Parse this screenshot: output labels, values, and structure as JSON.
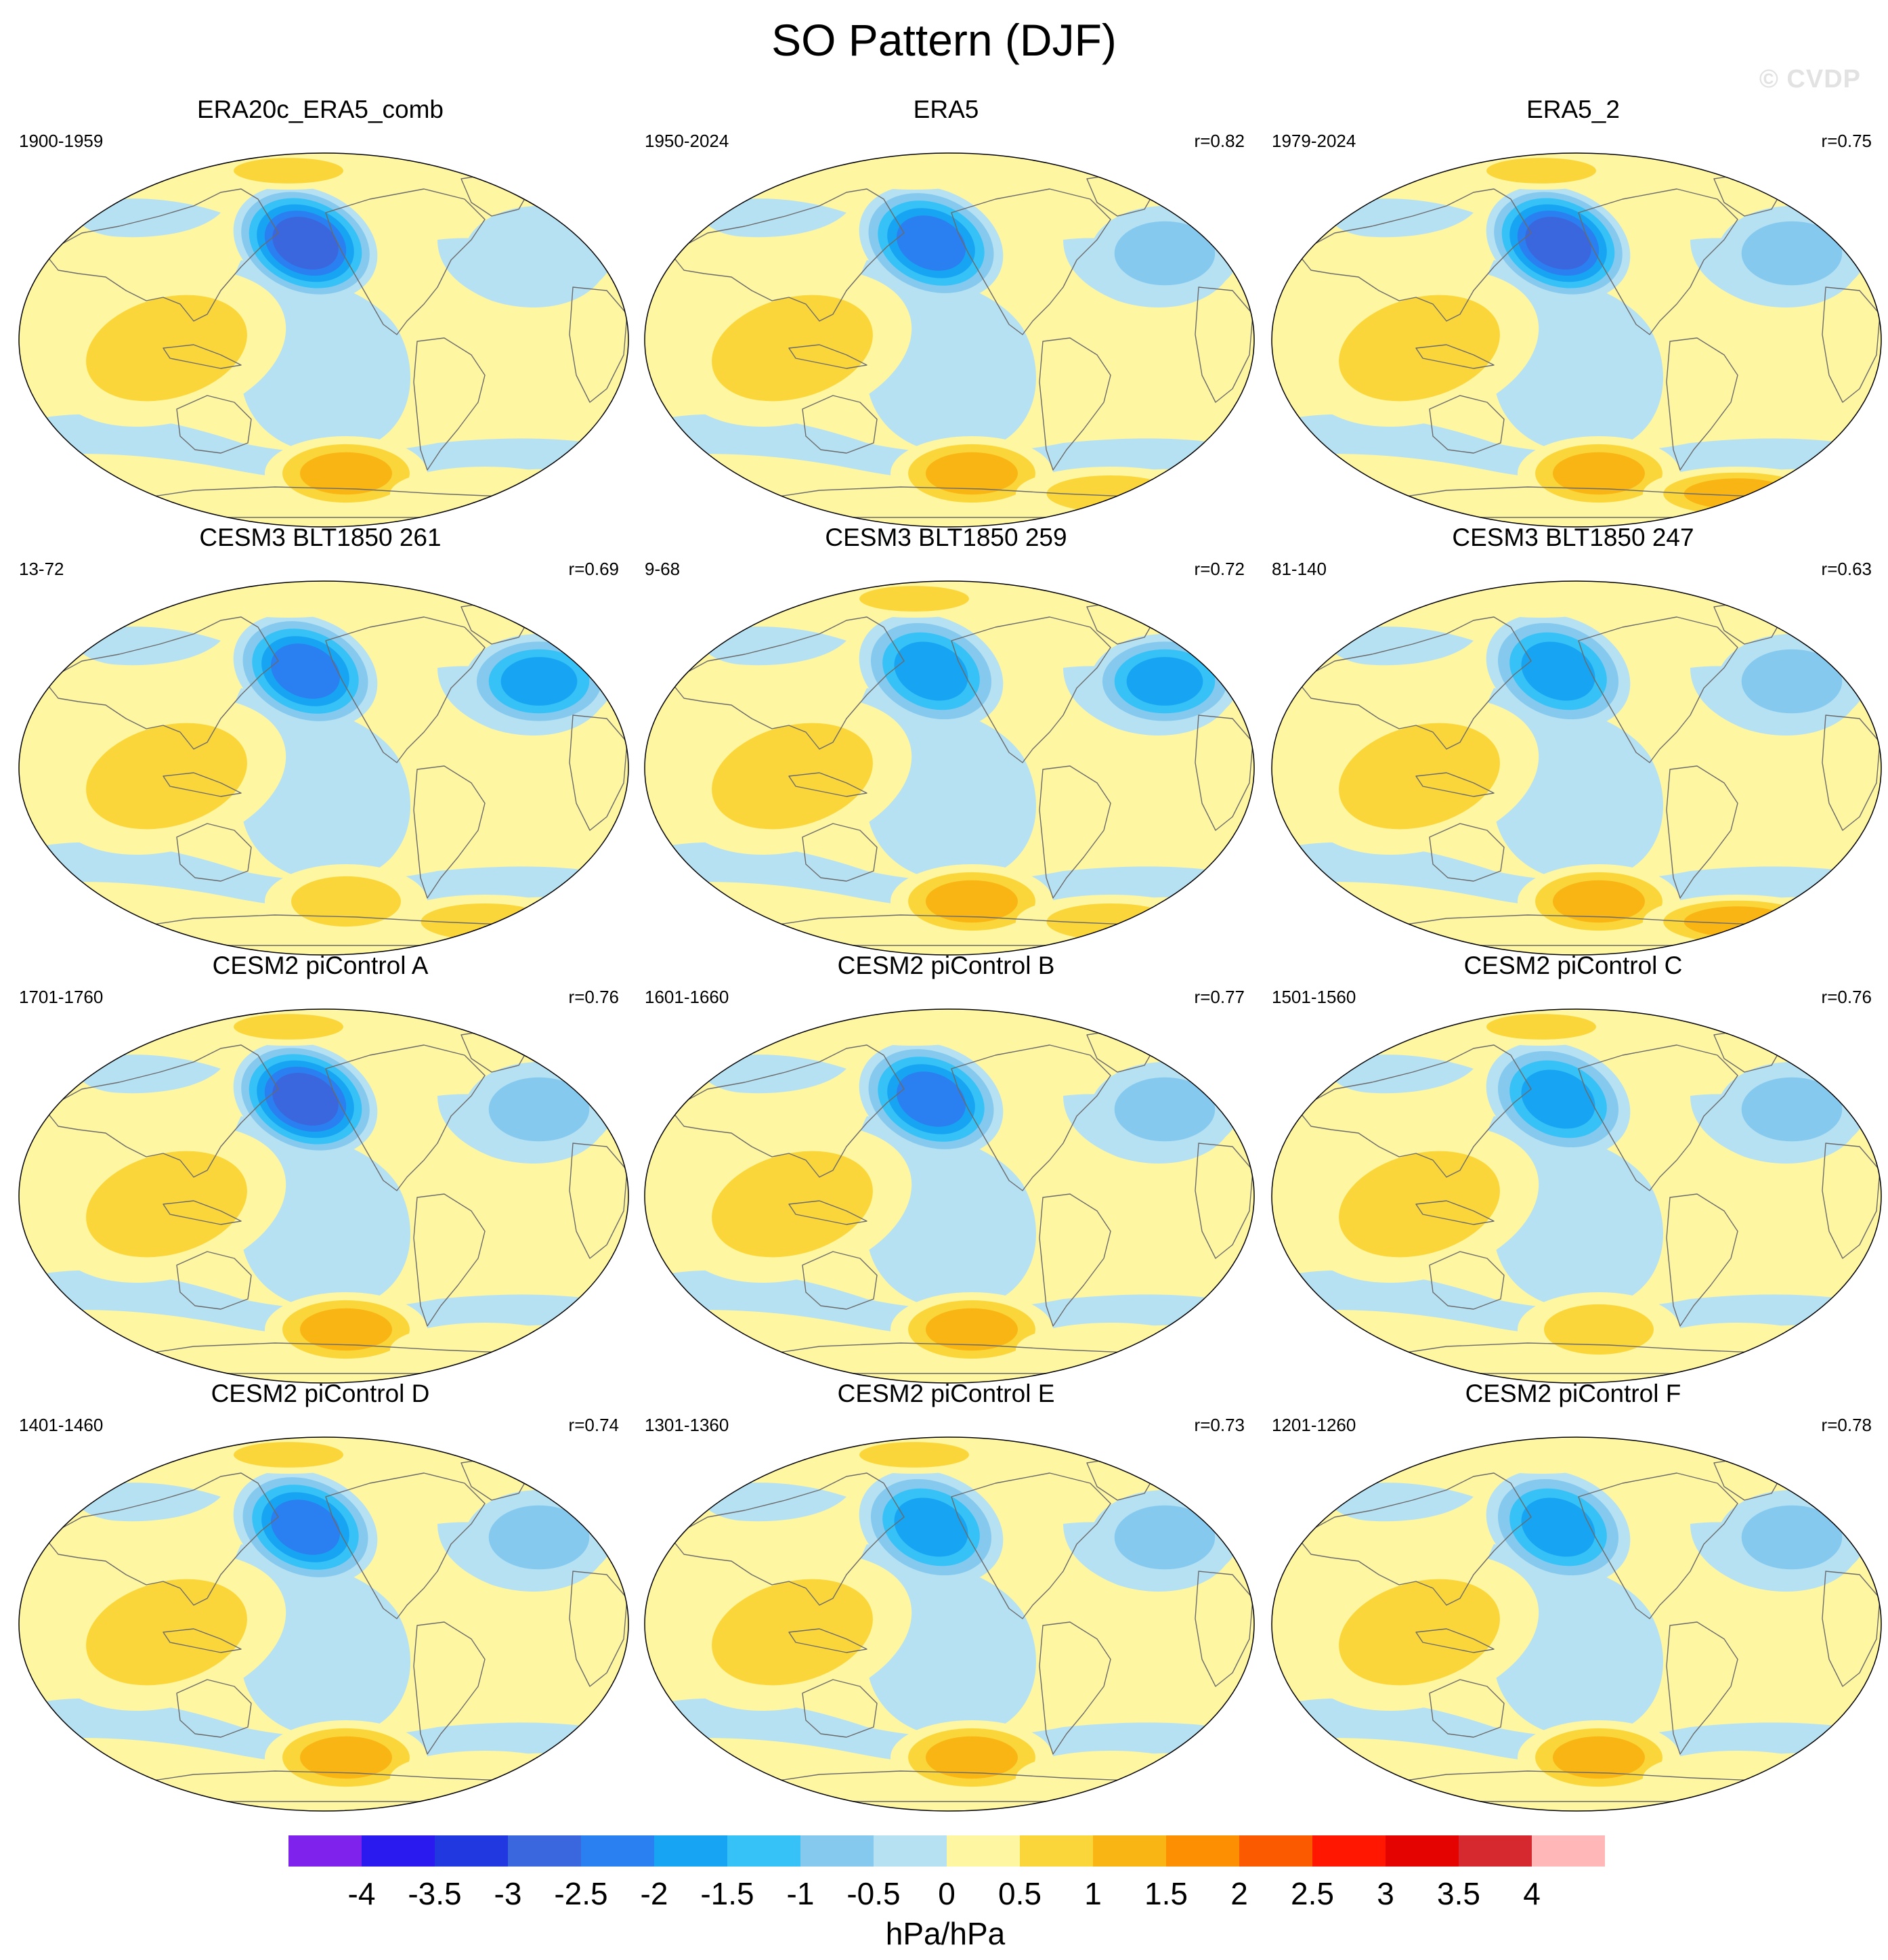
{
  "figure": {
    "title": "SO Pattern (DJF)",
    "watermark": "© CVDP"
  },
  "map_style": {
    "projection": "Robinson (Pacific-centred)",
    "coastline_color": "#6a6a6a"
  },
  "panels": [
    {
      "title": "ERA20c_ERA5_comb",
      "years": "1900-1959",
      "corr": "",
      "pattern": {
        "aleutian_low": -3.0,
        "icelandic": -0.5,
        "west_pacific": 1.0,
        "amundsen_high": 1.5,
        "weddell_high": 0.5,
        "arctic": 1.0
      }
    },
    {
      "title": "ERA5",
      "years": "1950-2024",
      "corr": "r=0.82",
      "pattern": {
        "aleutian_low": -2.5,
        "icelandic": -1.0,
        "west_pacific": 1.0,
        "amundsen_high": 1.5,
        "weddell_high": 1.0,
        "arctic": 0.5
      }
    },
    {
      "title": "ERA5_2",
      "years": "1979-2024",
      "corr": "r=0.75",
      "pattern": {
        "aleutian_low": -3.0,
        "icelandic": -1.0,
        "west_pacific": 1.0,
        "amundsen_high": 1.5,
        "weddell_high": 1.5,
        "arctic": 1.0
      }
    },
    {
      "title": "CESM3 BLT1850 261",
      "years": "13-72",
      "corr": "r=0.69",
      "pattern": {
        "aleutian_low": -2.5,
        "icelandic": -2.0,
        "west_pacific": 1.0,
        "amundsen_high": 1.0,
        "weddell_high": 1.0,
        "arctic": 0.5
      }
    },
    {
      "title": "CESM3 BLT1850 259",
      "years": "9-68",
      "corr": "r=0.72",
      "pattern": {
        "aleutian_low": -2.0,
        "icelandic": -2.0,
        "west_pacific": 1.0,
        "amundsen_high": 1.5,
        "weddell_high": 1.0,
        "arctic": 1.0
      }
    },
    {
      "title": "CESM3 BLT1850 247",
      "years": "81-140",
      "corr": "r=0.63",
      "pattern": {
        "aleutian_low": -2.0,
        "icelandic": -1.0,
        "west_pacific": 1.0,
        "amundsen_high": 1.5,
        "weddell_high": 1.5,
        "arctic": 0.5
      }
    },
    {
      "title": "CESM2 piControl A",
      "years": "1701-1760",
      "corr": "r=0.76",
      "pattern": {
        "aleutian_low": -3.0,
        "icelandic": -1.0,
        "west_pacific": 1.0,
        "amundsen_high": 1.5,
        "weddell_high": 0.5,
        "arctic": 1.0
      }
    },
    {
      "title": "CESM2 piControl B",
      "years": "1601-1660",
      "corr": "r=0.77",
      "pattern": {
        "aleutian_low": -2.5,
        "icelandic": -1.0,
        "west_pacific": 1.0,
        "amundsen_high": 1.5,
        "weddell_high": 0.5,
        "arctic": 0.5
      }
    },
    {
      "title": "CESM2 piControl C",
      "years": "1501-1560",
      "corr": "r=0.76",
      "pattern": {
        "aleutian_low": -2.0,
        "icelandic": -1.0,
        "west_pacific": 1.0,
        "amundsen_high": 1.0,
        "weddell_high": 0.5,
        "arctic": 1.0
      }
    },
    {
      "title": "CESM2 piControl D",
      "years": "1401-1460",
      "corr": "r=0.74",
      "pattern": {
        "aleutian_low": -2.5,
        "icelandic": -1.0,
        "west_pacific": 1.0,
        "amundsen_high": 1.5,
        "weddell_high": 0.5,
        "arctic": 1.0
      }
    },
    {
      "title": "CESM2 piControl E",
      "years": "1301-1360",
      "corr": "r=0.73",
      "pattern": {
        "aleutian_low": -2.0,
        "icelandic": -1.0,
        "west_pacific": 1.0,
        "amundsen_high": 1.5,
        "weddell_high": 0.5,
        "arctic": 1.0
      }
    },
    {
      "title": "CESM2 piControl F",
      "years": "1201-1260",
      "corr": "r=0.78",
      "pattern": {
        "aleutian_low": -2.0,
        "icelandic": -1.0,
        "west_pacific": 1.0,
        "amundsen_high": 1.5,
        "weddell_high": 0.5,
        "arctic": 0.5
      }
    }
  ],
  "colorbar": {
    "unit": "hPa/hPa",
    "labels": [
      "-4",
      "-3.5",
      "-3",
      "-2.5",
      "-2",
      "-1.5",
      "-1",
      "-0.5",
      "0",
      "0.5",
      "1",
      "1.5",
      "2",
      "2.5",
      "3",
      "3.5",
      "4"
    ],
    "colors": [
      "#7f22ec",
      "#2b1af0",
      "#2138e0",
      "#3a66de",
      "#2a80f0",
      "#17a5f3",
      "#36c2f6",
      "#86c9ee",
      "#b6e1f3",
      "#fff6a1",
      "#fbd63a",
      "#f9b514",
      "#fd8f02",
      "#fb5a01",
      "#ff1701",
      "#e40300",
      "#d5282f",
      "#ffb7b8"
    ]
  }
}
